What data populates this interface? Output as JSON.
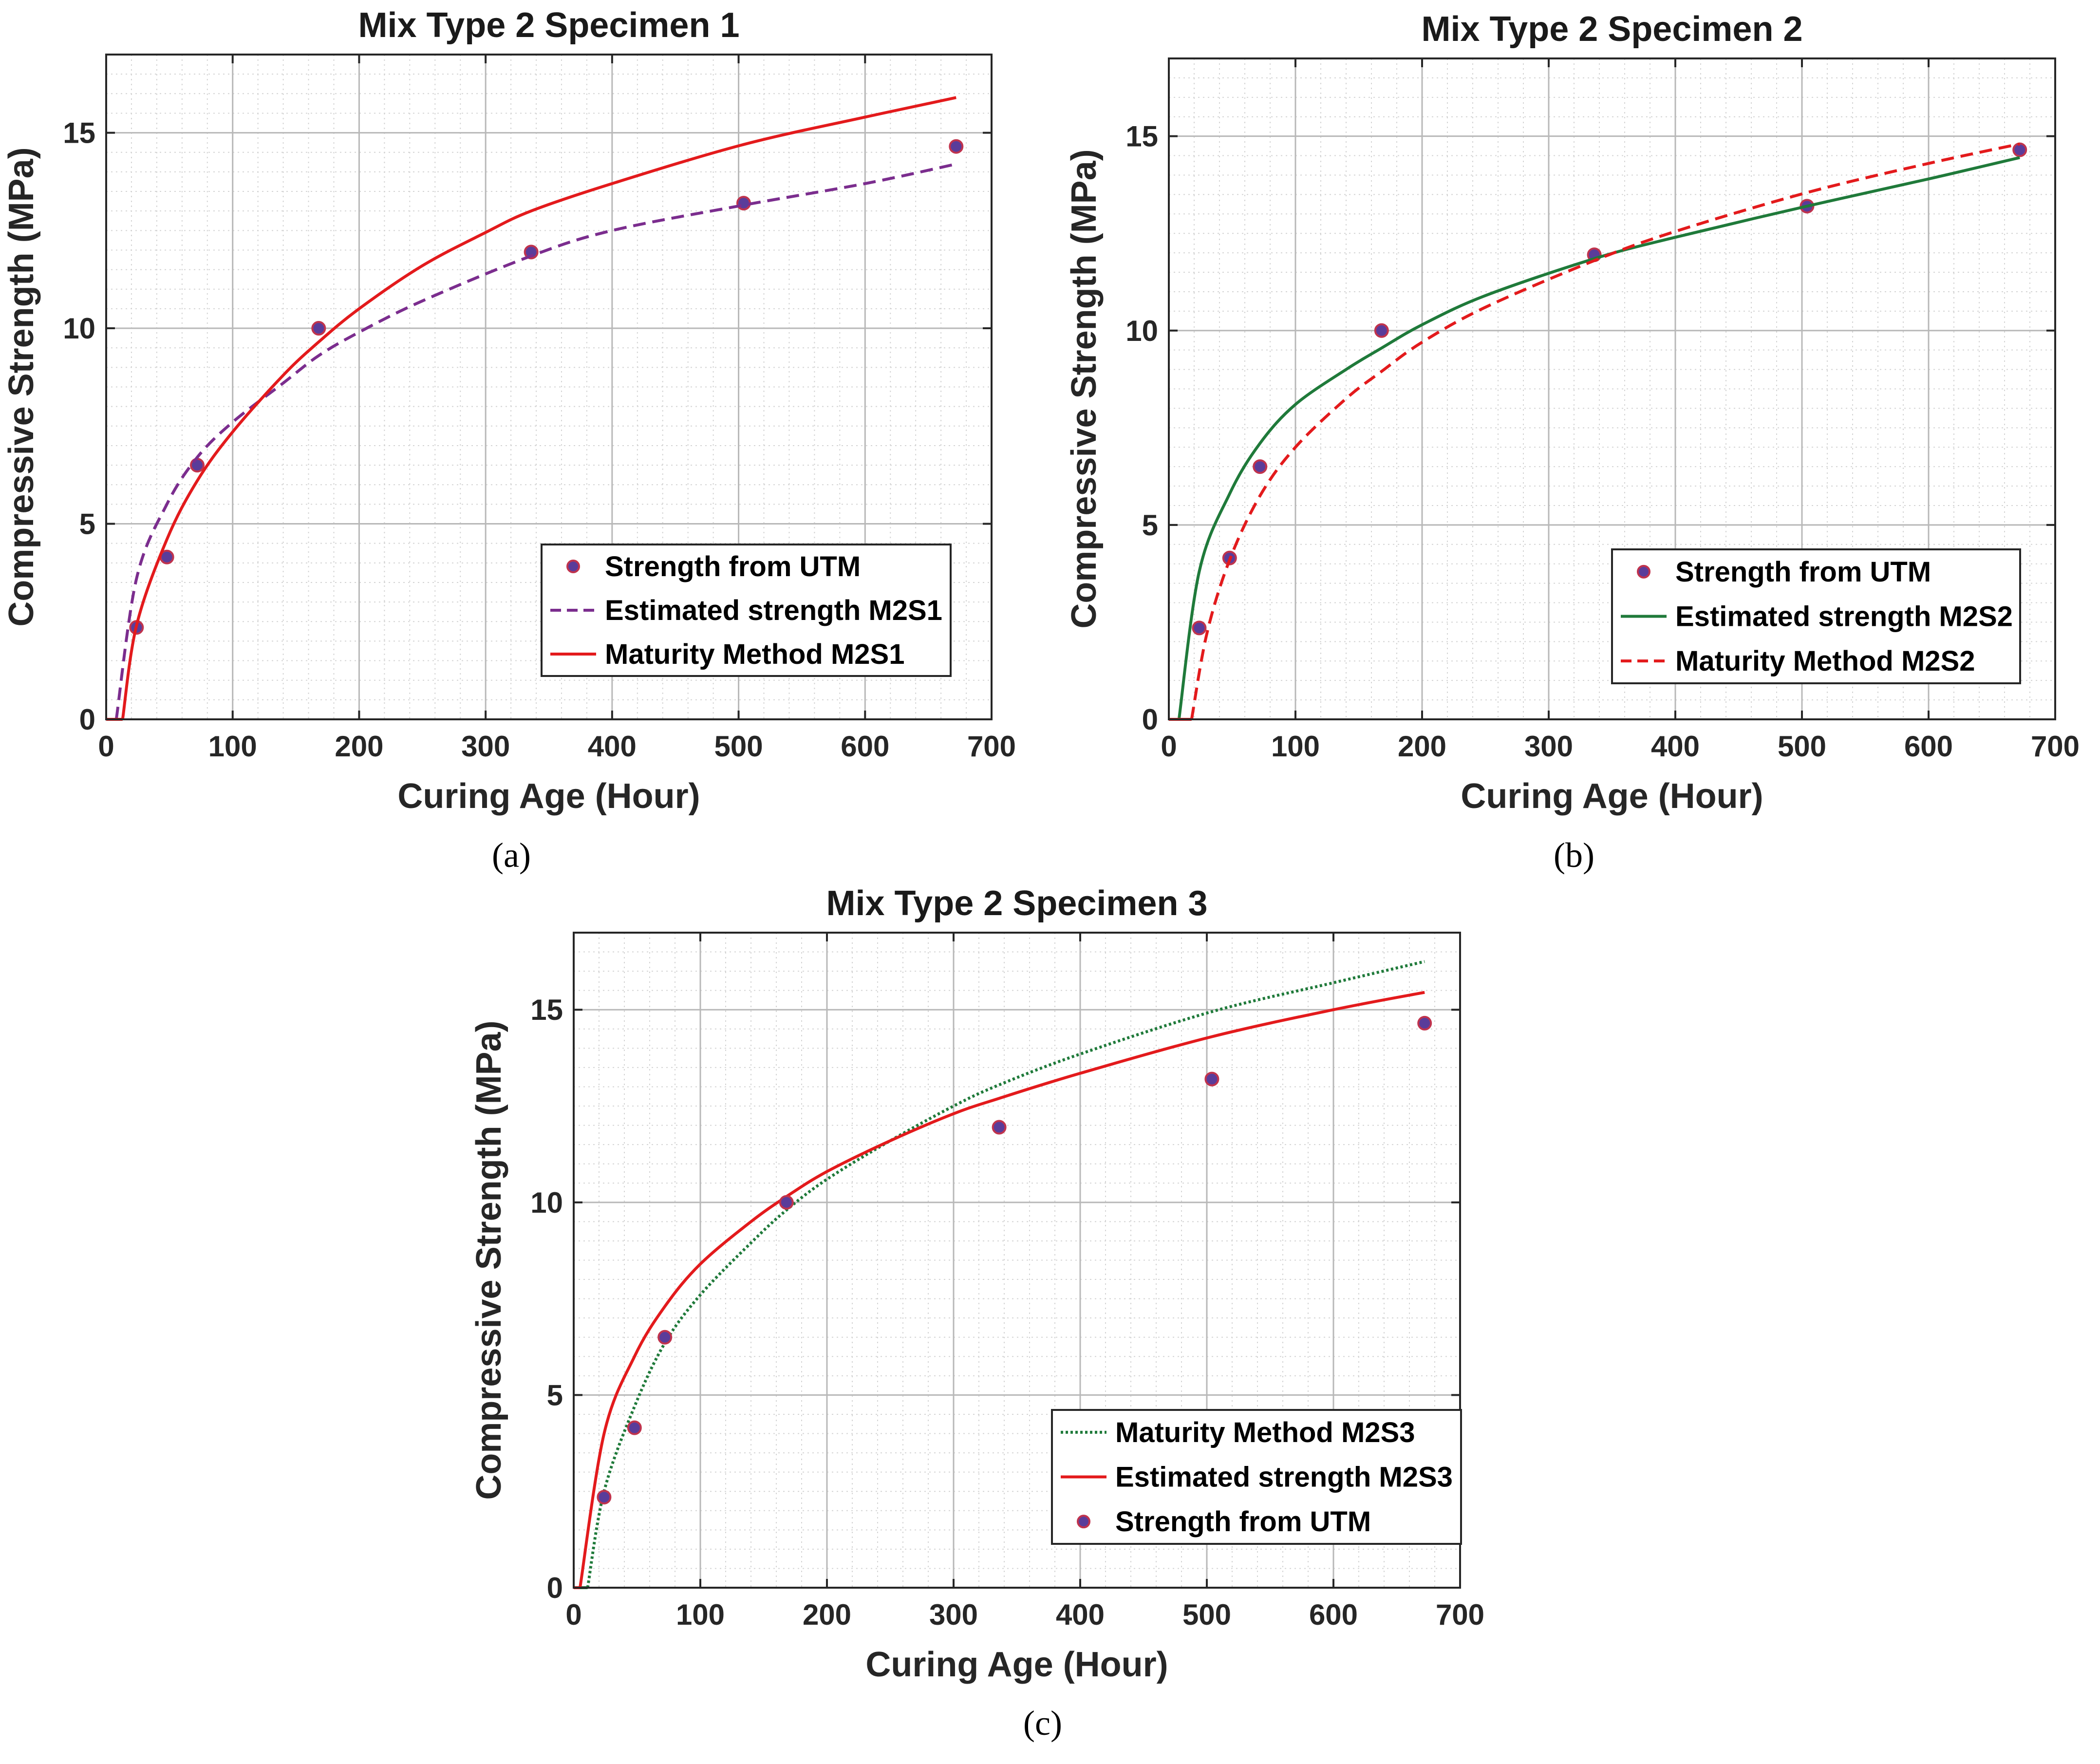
{
  "figure": {
    "captions": [
      "(a)",
      "(b)",
      "(c)"
    ]
  },
  "chart_data": [
    {
      "type": "line",
      "title": "Mix Type 2 Specimen 1",
      "xlabel": "Curing Age (Hour)",
      "ylabel": "Compressive Strength (MPa)",
      "xlim": [
        0,
        700
      ],
      "ylim": [
        0,
        17
      ],
      "xticks": [
        0,
        100,
        200,
        300,
        400,
        500,
        600,
        700
      ],
      "yticks": [
        0,
        5,
        10,
        15
      ],
      "grid": true,
      "legend_position": "bottom-right",
      "series": [
        {
          "name": "Strength from UTM",
          "kind": "scatter",
          "color": "#7b2d8e",
          "x": [
            24,
            48,
            72,
            168,
            336,
            504,
            672
          ],
          "y": [
            2.35,
            4.15,
            6.5,
            10.0,
            11.95,
            13.2,
            14.65
          ]
        },
        {
          "name": "Estimated strength M2S1",
          "kind": "dashed",
          "color": "#7b2d8e",
          "x": [
            8,
            24,
            48,
            72,
            100,
            140,
            168,
            200,
            250,
            336,
            400,
            504,
            600,
            672
          ],
          "y": [
            0.0,
            3.6,
            5.5,
            6.7,
            7.6,
            8.6,
            9.3,
            9.9,
            10.7,
            11.85,
            12.5,
            13.15,
            13.7,
            14.2
          ]
        },
        {
          "name": "Maturity Method M2S1",
          "kind": "solid",
          "color": "#e31a1c",
          "x": [
            13,
            24,
            48,
            72,
            100,
            140,
            168,
            200,
            250,
            300,
            336,
            400,
            504,
            600,
            672
          ],
          "y": [
            0.0,
            2.4,
            4.6,
            6.1,
            7.35,
            8.8,
            9.65,
            10.5,
            11.6,
            12.45,
            13.0,
            13.7,
            14.7,
            15.4,
            15.9
          ]
        }
      ]
    },
    {
      "type": "line",
      "title": "Mix Type 2 Specimen 2",
      "xlabel": "Curing Age (Hour)",
      "ylabel": "Compressive Strength (MPa)",
      "xlim": [
        0,
        700
      ],
      "ylim": [
        0,
        17
      ],
      "xticks": [
        0,
        100,
        200,
        300,
        400,
        500,
        600,
        700
      ],
      "yticks": [
        0,
        5,
        10,
        15
      ],
      "grid": true,
      "legend_position": "bottom-right",
      "series": [
        {
          "name": "Strength from UTM",
          "kind": "scatter",
          "color": "#7b2d8e",
          "x": [
            24,
            48,
            72,
            168,
            336,
            504,
            672
          ],
          "y": [
            2.35,
            4.15,
            6.5,
            10.0,
            11.95,
            13.2,
            14.65
          ]
        },
        {
          "name": "Estimated strength M2S2",
          "kind": "solid",
          "color": "#1f7a3a",
          "x": [
            8,
            24,
            48,
            72,
            100,
            140,
            168,
            200,
            250,
            336,
            400,
            504,
            600,
            672
          ],
          "y": [
            0.0,
            3.8,
            5.8,
            7.1,
            8.1,
            9.0,
            9.55,
            10.15,
            10.9,
            11.85,
            12.4,
            13.2,
            13.9,
            14.45
          ]
        },
        {
          "name": "Maturity Method M2S2",
          "kind": "dashed",
          "color": "#e31a1c",
          "x": [
            18,
            30,
            48,
            72,
            100,
            140,
            168,
            200,
            250,
            336,
            400,
            504,
            600,
            672
          ],
          "y": [
            0.0,
            2.2,
            4.1,
            5.75,
            7.0,
            8.25,
            8.95,
            9.7,
            10.6,
            11.8,
            12.55,
            13.55,
            14.3,
            14.8
          ]
        }
      ]
    },
    {
      "type": "line",
      "title": "Mix Type 2 Specimen 3",
      "xlabel": "Curing Age (Hour)",
      "ylabel": "Compressive Strength (MPa)",
      "xlim": [
        0,
        700
      ],
      "ylim": [
        0,
        17
      ],
      "xticks": [
        0,
        100,
        200,
        300,
        400,
        500,
        600,
        700
      ],
      "yticks": [
        0,
        5,
        10,
        15
      ],
      "grid": true,
      "legend_position": "bottom-right",
      "series": [
        {
          "name": "Maturity Method M2S3",
          "kind": "dotted",
          "color": "#1f7a3a",
          "x": [
            11,
            24,
            48,
            72,
            100,
            140,
            168,
            200,
            250,
            300,
            336,
            400,
            504,
            600,
            672
          ],
          "y": [
            0.0,
            2.5,
            4.7,
            6.35,
            7.6,
            8.95,
            9.8,
            10.6,
            11.6,
            12.5,
            13.05,
            13.85,
            14.95,
            15.7,
            16.25
          ]
        },
        {
          "name": "Estimated strength M2S3",
          "kind": "solid",
          "color": "#e31a1c",
          "x": [
            5,
            24,
            48,
            72,
            100,
            140,
            168,
            200,
            250,
            300,
            336,
            400,
            504,
            600,
            672
          ],
          "y": [
            0.0,
            4.0,
            6.0,
            7.3,
            8.4,
            9.5,
            10.15,
            10.8,
            11.6,
            12.3,
            12.7,
            13.35,
            14.3,
            15.0,
            15.45
          ]
        },
        {
          "name": "Strength from UTM",
          "kind": "scatter",
          "color": "#7b2d8e",
          "x": [
            24,
            48,
            72,
            168,
            336,
            504,
            672
          ],
          "y": [
            2.35,
            4.15,
            6.5,
            10.0,
            11.95,
            13.2,
            14.65
          ]
        }
      ]
    }
  ]
}
